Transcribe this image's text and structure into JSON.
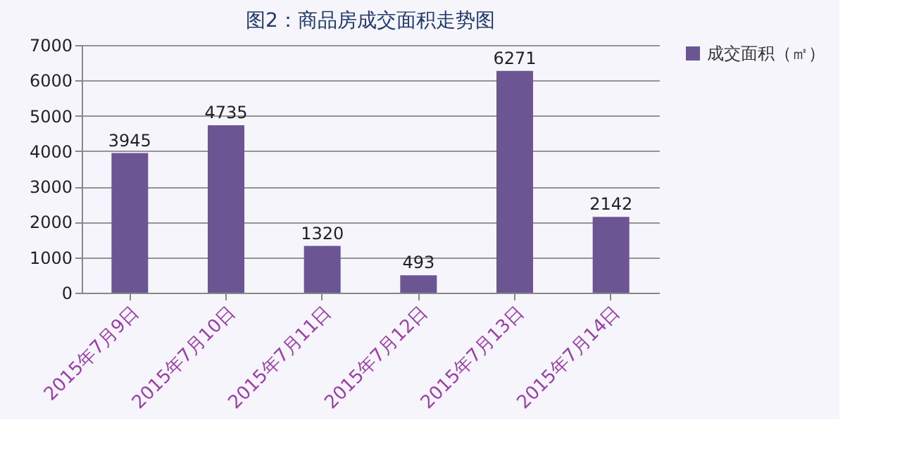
{
  "chart_data": {
    "type": "bar",
    "title": "图2：商品房成交面积走势图",
    "categories": [
      "2015年7月9日",
      "2015年7月10日",
      "2015年7月11日",
      "2015年7月12日",
      "2015年7月13日",
      "2015年7月14日"
    ],
    "series": [
      {
        "name": "成交面积（㎡）",
        "color": "#6b5593",
        "values": [
          3945,
          4735,
          1320,
          493,
          6271,
          2142
        ]
      }
    ],
    "ylim": [
      0,
      7000
    ],
    "yticks": [
      0,
      1000,
      2000,
      3000,
      4000,
      5000,
      6000,
      7000
    ],
    "grid": "y",
    "legend": "right",
    "data_labels": true
  }
}
